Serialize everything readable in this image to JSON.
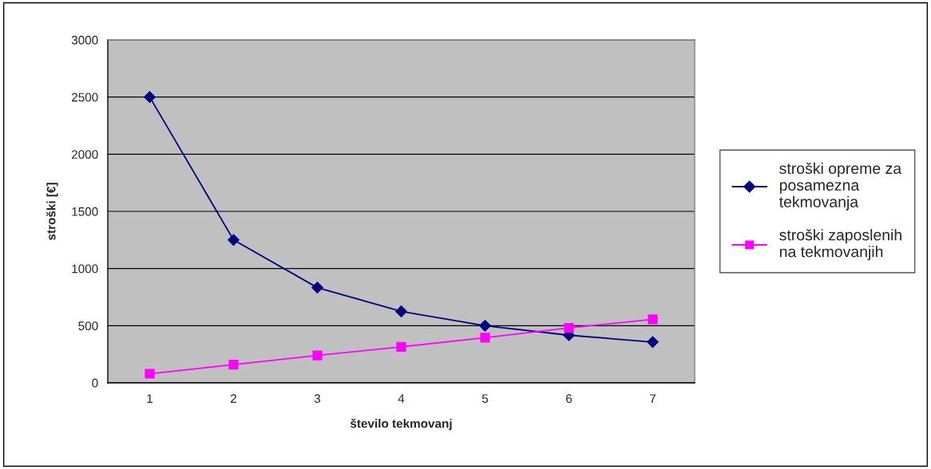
{
  "chart_data": {
    "type": "line",
    "xlabel": "število tekmovanj",
    "ylabel": "stroški [€]",
    "categories": [
      "1",
      "2",
      "3",
      "4",
      "5",
      "6",
      "7"
    ],
    "series": [
      {
        "name": "stroški opreme za posamezna tekmovanja",
        "color": "#000080",
        "marker": "diamond",
        "values": [
          2500,
          1250,
          833,
          625,
          500,
          417,
          357
        ]
      },
      {
        "name": "stroški zaposlenih na tekmovanjih",
        "color": "#ff00ff",
        "marker": "square",
        "values": [
          80,
          160,
          240,
          315,
          395,
          480,
          555
        ]
      }
    ],
    "ylim": [
      0,
      3000
    ],
    "yticks": [
      0,
      500,
      1000,
      1500,
      2000,
      2500,
      3000
    ],
    "grid": "y",
    "legend": "right",
    "line_style": "solid"
  }
}
